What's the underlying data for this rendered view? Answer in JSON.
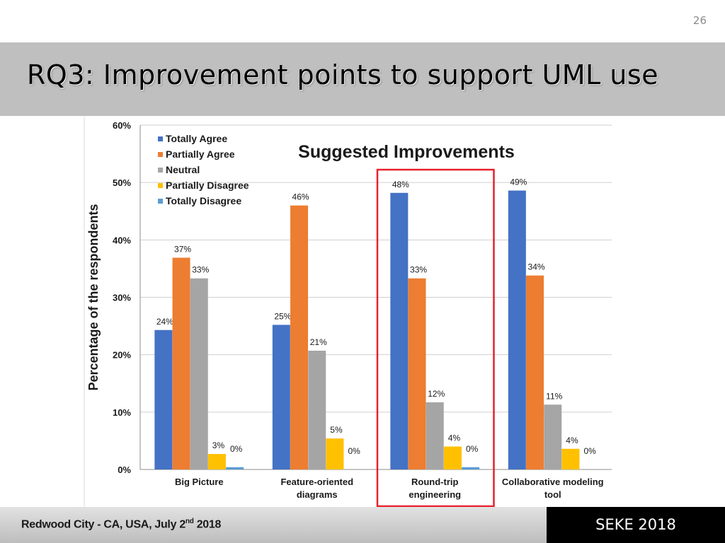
{
  "slide": {
    "page_number": "26",
    "title": "RQ3: Improvement points to support UML use"
  },
  "footer": {
    "location_prefix": "Redwood City - CA, USA, July 2",
    "location_sup": "nd",
    "location_suffix": " 2018",
    "conference": "SEKE 2018"
  },
  "colors": {
    "title_bar": "#bfbfbf",
    "highlight_box": "#e8202a",
    "footer_dark": "#000000"
  },
  "chart_data": {
    "type": "bar",
    "title": "Suggested Improvements",
    "xlabel": "",
    "ylabel": "Percentage of the respondents",
    "ylim": [
      0,
      60
    ],
    "yticks": [
      "0%",
      "10%",
      "20%",
      "30%",
      "40%",
      "50%",
      "60%"
    ],
    "grid": true,
    "legend_position": "top-left",
    "categories": [
      [
        "Big Picture"
      ],
      [
        "Feature-oriented",
        "diagrams"
      ],
      [
        "Round-trip",
        "engineering"
      ],
      [
        "Collaborative modeling",
        "tool"
      ]
    ],
    "highlighted_category": 2,
    "series": [
      {
        "name": "Totally Agree",
        "color": "#4472c4",
        "values": [
          24.3,
          25.2,
          48.2,
          48.6
        ],
        "labels": [
          "24%",
          "25%",
          "48%",
          "49%"
        ]
      },
      {
        "name": "Partially Agree",
        "color": "#ed7d31",
        "values": [
          36.9,
          46.0,
          33.3,
          33.8
        ],
        "labels": [
          "37%",
          "46%",
          "33%",
          "34%"
        ]
      },
      {
        "name": "Neutral",
        "color": "#a5a5a5",
        "values": [
          33.3,
          20.7,
          11.7,
          11.3
        ],
        "labels": [
          "33%",
          "21%",
          "12%",
          "11%"
        ]
      },
      {
        "name": "Partially Disagree",
        "color": "#ffc000",
        "values": [
          2.7,
          5.4,
          4.0,
          3.6
        ],
        "labels": [
          "3%",
          "5%",
          "4%",
          "4%"
        ]
      },
      {
        "name": "Totally Disagree",
        "color": "#5b9bd5",
        "values": [
          0.4,
          0.0,
          0.4,
          0.0
        ],
        "labels": [
          "0%",
          "0%",
          "0%",
          "0%"
        ]
      }
    ]
  }
}
